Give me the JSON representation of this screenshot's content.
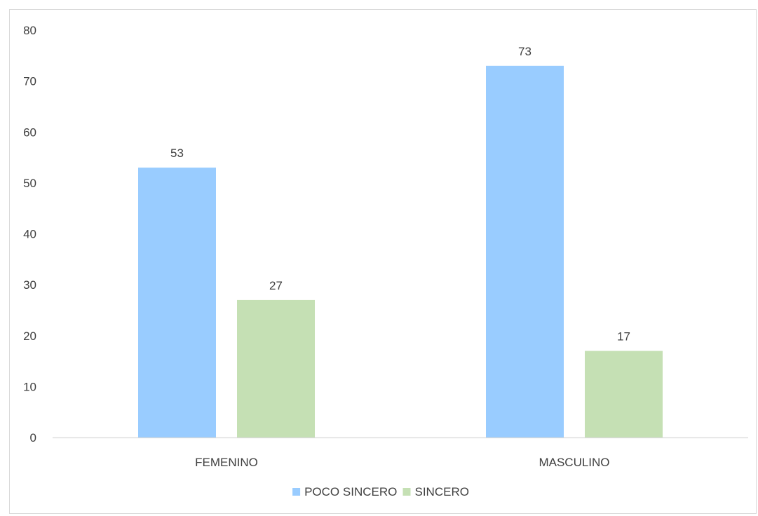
{
  "chart_data": {
    "type": "bar",
    "categories": [
      "FEMENINO",
      "MASCULINO"
    ],
    "series": [
      {
        "name": "POCO SINCERO",
        "values": [
          53,
          73
        ],
        "color": "#99ccff"
      },
      {
        "name": "SINCERO",
        "values": [
          27,
          17
        ],
        "color": "#c5e0b4"
      }
    ],
    "ylim": [
      0,
      80
    ],
    "yticks": [
      0,
      10,
      20,
      30,
      40,
      50,
      60,
      70,
      80
    ],
    "legend_position": "bottom",
    "data_labels": true,
    "grid": false,
    "axis_color": "#d9d9d9",
    "text_color": "#404040"
  }
}
